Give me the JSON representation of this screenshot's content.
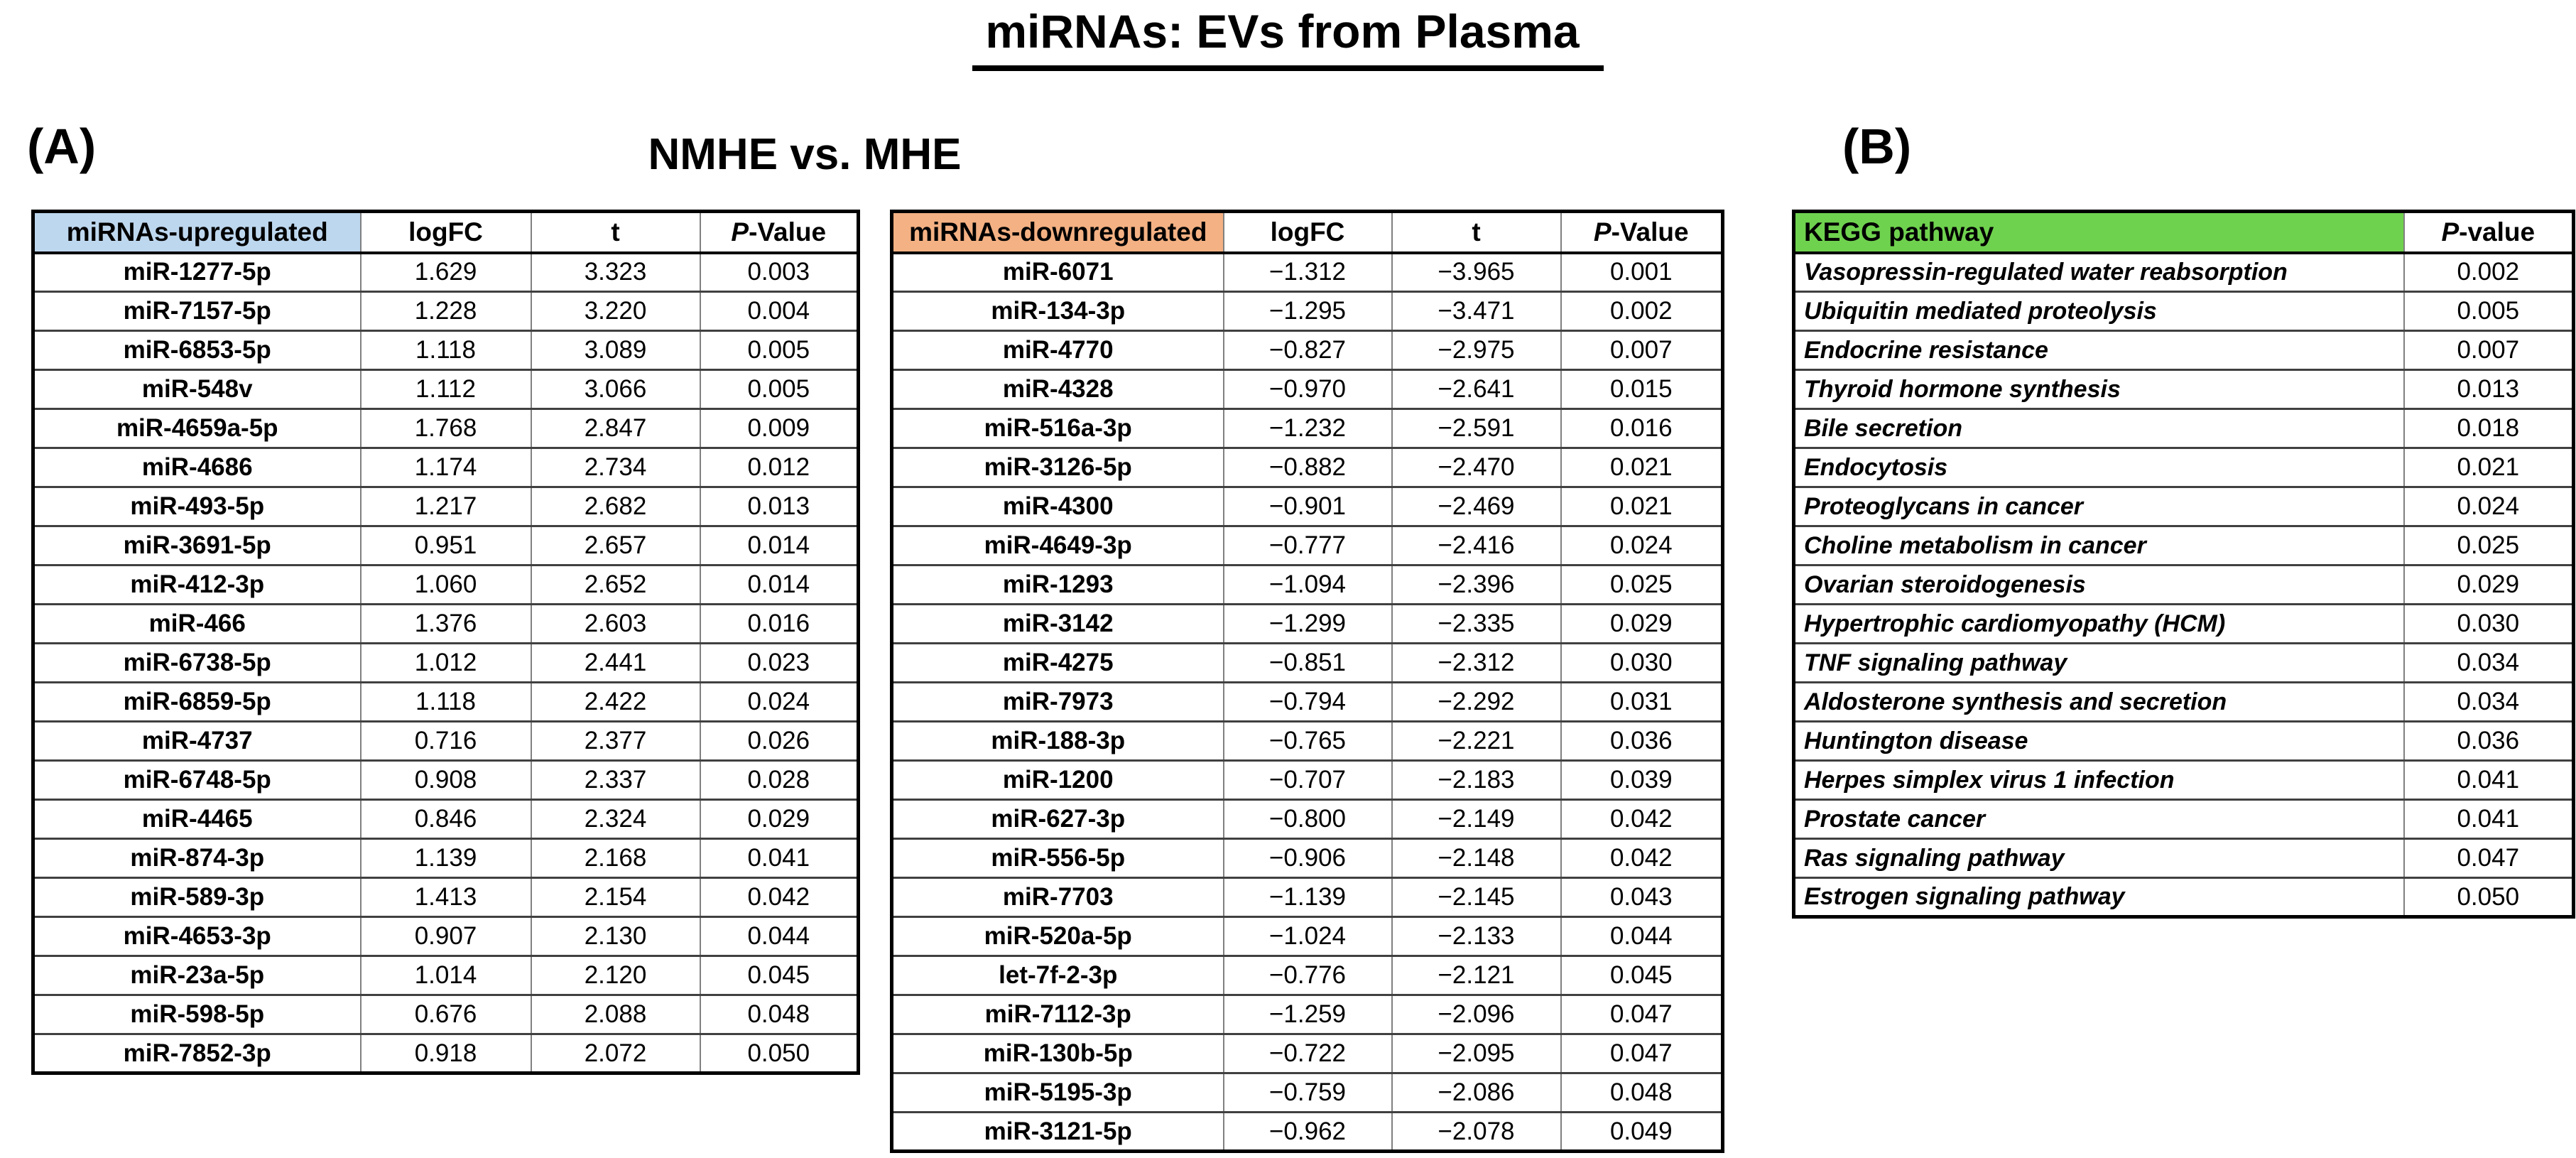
{
  "title": "miRNAs: EVs from Plasma",
  "colors": {
    "upregulated_header_bg": "#bdd7ee",
    "downregulated_header_bg": "#f4b183",
    "kegg_header_bg": "#6fd24e"
  },
  "panel_a": {
    "label": "(A)",
    "heading": "NMHE vs. MHE",
    "upregulated": {
      "header": [
        "miRNAs-upregulated",
        "logFC",
        "t",
        "P-Value"
      ],
      "header_bg": "#bdd7ee",
      "rows": [
        [
          "miR-1277-5p",
          "1.629",
          "3.323",
          "0.003"
        ],
        [
          "miR-7157-5p",
          "1.228",
          "3.220",
          "0.004"
        ],
        [
          "miR-6853-5p",
          "1.118",
          "3.089",
          "0.005"
        ],
        [
          "miR-548v",
          "1.112",
          "3.066",
          "0.005"
        ],
        [
          "miR-4659a-5p",
          "1.768",
          "2.847",
          "0.009"
        ],
        [
          "miR-4686",
          "1.174",
          "2.734",
          "0.012"
        ],
        [
          "miR-493-5p",
          "1.217",
          "2.682",
          "0.013"
        ],
        [
          "miR-3691-5p",
          "0.951",
          "2.657",
          "0.014"
        ],
        [
          "miR-412-3p",
          "1.060",
          "2.652",
          "0.014"
        ],
        [
          "miR-466",
          "1.376",
          "2.603",
          "0.016"
        ],
        [
          "miR-6738-5p",
          "1.012",
          "2.441",
          "0.023"
        ],
        [
          "miR-6859-5p",
          "1.118",
          "2.422",
          "0.024"
        ],
        [
          "miR-4737",
          "0.716",
          "2.377",
          "0.026"
        ],
        [
          "miR-6748-5p",
          "0.908",
          "2.337",
          "0.028"
        ],
        [
          "miR-4465",
          "0.846",
          "2.324",
          "0.029"
        ],
        [
          "miR-874-3p",
          "1.139",
          "2.168",
          "0.041"
        ],
        [
          "miR-589-3p",
          "1.413",
          "2.154",
          "0.042"
        ],
        [
          "miR-4653-3p",
          "0.907",
          "2.130",
          "0.044"
        ],
        [
          "miR-23a-5p",
          "1.014",
          "2.120",
          "0.045"
        ],
        [
          "miR-598-5p",
          "0.676",
          "2.088",
          "0.048"
        ],
        [
          "miR-7852-3p",
          "0.918",
          "2.072",
          "0.050"
        ]
      ]
    },
    "downregulated": {
      "header": [
        "miRNAs-downregulated",
        "logFC",
        "t",
        "P-Value"
      ],
      "header_bg": "#f4b183",
      "rows": [
        [
          "miR-6071",
          "−1.312",
          "−3.965",
          "0.001"
        ],
        [
          "miR-134-3p",
          "−1.295",
          "−3.471",
          "0.002"
        ],
        [
          "miR-4770",
          "−0.827",
          "−2.975",
          "0.007"
        ],
        [
          "miR-4328",
          "−0.970",
          "−2.641",
          "0.015"
        ],
        [
          "miR-516a-3p",
          "−1.232",
          "−2.591",
          "0.016"
        ],
        [
          "miR-3126-5p",
          "−0.882",
          "−2.470",
          "0.021"
        ],
        [
          "miR-4300",
          "−0.901",
          "−2.469",
          "0.021"
        ],
        [
          "miR-4649-3p",
          "−0.777",
          "−2.416",
          "0.024"
        ],
        [
          "miR-1293",
          "−1.094",
          "−2.396",
          "0.025"
        ],
        [
          "miR-3142",
          "−1.299",
          "−2.335",
          "0.029"
        ],
        [
          "miR-4275",
          "−0.851",
          "−2.312",
          "0.030"
        ],
        [
          "miR-7973",
          "−0.794",
          "−2.292",
          "0.031"
        ],
        [
          "miR-188-3p",
          "−0.765",
          "−2.221",
          "0.036"
        ],
        [
          "miR-1200",
          "−0.707",
          "−2.183",
          "0.039"
        ],
        [
          "miR-627-3p",
          "−0.800",
          "−2.149",
          "0.042"
        ],
        [
          "miR-556-5p",
          "−0.906",
          "−2.148",
          "0.042"
        ],
        [
          "miR-7703",
          "−1.139",
          "−2.145",
          "0.043"
        ],
        [
          "miR-520a-5p",
          "−1.024",
          "−2.133",
          "0.044"
        ],
        [
          "let-7f-2-3p",
          "−0.776",
          "−2.121",
          "0.045"
        ],
        [
          "miR-7112-3p",
          "−1.259",
          "−2.096",
          "0.047"
        ],
        [
          "miR-130b-5p",
          "−0.722",
          "−2.095",
          "0.047"
        ],
        [
          "miR-5195-3p",
          "−0.759",
          "−2.086",
          "0.048"
        ],
        [
          "miR-3121-5p",
          "−0.962",
          "−2.078",
          "0.049"
        ]
      ]
    }
  },
  "panel_b": {
    "label": "(B)",
    "kegg": {
      "header": [
        "KEGG pathway",
        "P-value"
      ],
      "header_bg": "#6fd24e",
      "rows": [
        [
          "Vasopressin-regulated water reabsorption",
          "0.002"
        ],
        [
          "Ubiquitin mediated proteolysis",
          "0.005"
        ],
        [
          "Endocrine resistance",
          "0.007"
        ],
        [
          "Thyroid hormone synthesis",
          "0.013"
        ],
        [
          "Bile secretion",
          "0.018"
        ],
        [
          "Endocytosis",
          "0.021"
        ],
        [
          "Proteoglycans in cancer",
          "0.024"
        ],
        [
          "Choline metabolism in cancer",
          "0.025"
        ],
        [
          "Ovarian steroidogenesis",
          "0.029"
        ],
        [
          "Hypertrophic cardiomyopathy (HCM)",
          "0.030"
        ],
        [
          "TNF signaling pathway",
          "0.034"
        ],
        [
          "Aldosterone synthesis and secretion",
          "0.034"
        ],
        [
          "Huntington disease",
          "0.036"
        ],
        [
          "Herpes simplex virus 1 infection",
          "0.041"
        ],
        [
          "Prostate cancer",
          "0.041"
        ],
        [
          "Ras signaling pathway",
          "0.047"
        ],
        [
          "Estrogen signaling pathway",
          "0.050"
        ]
      ]
    }
  },
  "chart_data": [
    {
      "type": "table",
      "title": "miRNAs-upregulated (NMHE vs. MHE, EVs from Plasma)",
      "columns": [
        "miRNAs-upregulated",
        "logFC",
        "t",
        "P-Value"
      ],
      "rows": [
        [
          "miR-1277-5p",
          1.629,
          3.323,
          0.003
        ],
        [
          "miR-7157-5p",
          1.228,
          3.22,
          0.004
        ],
        [
          "miR-6853-5p",
          1.118,
          3.089,
          0.005
        ],
        [
          "miR-548v",
          1.112,
          3.066,
          0.005
        ],
        [
          "miR-4659a-5p",
          1.768,
          2.847,
          0.009
        ],
        [
          "miR-4686",
          1.174,
          2.734,
          0.012
        ],
        [
          "miR-493-5p",
          1.217,
          2.682,
          0.013
        ],
        [
          "miR-3691-5p",
          0.951,
          2.657,
          0.014
        ],
        [
          "miR-412-3p",
          1.06,
          2.652,
          0.014
        ],
        [
          "miR-466",
          1.376,
          2.603,
          0.016
        ],
        [
          "miR-6738-5p",
          1.012,
          2.441,
          0.023
        ],
        [
          "miR-6859-5p",
          1.118,
          2.422,
          0.024
        ],
        [
          "miR-4737",
          0.716,
          2.377,
          0.026
        ],
        [
          "miR-6748-5p",
          0.908,
          2.337,
          0.028
        ],
        [
          "miR-4465",
          0.846,
          2.324,
          0.029
        ],
        [
          "miR-874-3p",
          1.139,
          2.168,
          0.041
        ],
        [
          "miR-589-3p",
          1.413,
          2.154,
          0.042
        ],
        [
          "miR-4653-3p",
          0.907,
          2.13,
          0.044
        ],
        [
          "miR-23a-5p",
          1.014,
          2.12,
          0.045
        ],
        [
          "miR-598-5p",
          0.676,
          2.088,
          0.048
        ],
        [
          "miR-7852-3p",
          0.918,
          2.072,
          0.05
        ]
      ]
    },
    {
      "type": "table",
      "title": "miRNAs-downregulated (NMHE vs. MHE, EVs from Plasma)",
      "columns": [
        "miRNAs-downregulated",
        "logFC",
        "t",
        "P-Value"
      ],
      "rows": [
        [
          "miR-6071",
          -1.312,
          -3.965,
          0.001
        ],
        [
          "miR-134-3p",
          -1.295,
          -3.471,
          0.002
        ],
        [
          "miR-4770",
          -0.827,
          -2.975,
          0.007
        ],
        [
          "miR-4328",
          -0.97,
          -2.641,
          0.015
        ],
        [
          "miR-516a-3p",
          -1.232,
          -2.591,
          0.016
        ],
        [
          "miR-3126-5p",
          -0.882,
          -2.47,
          0.021
        ],
        [
          "miR-4300",
          -0.901,
          -2.469,
          0.021
        ],
        [
          "miR-4649-3p",
          -0.777,
          -2.416,
          0.024
        ],
        [
          "miR-1293",
          -1.094,
          -2.396,
          0.025
        ],
        [
          "miR-3142",
          -1.299,
          -2.335,
          0.029
        ],
        [
          "miR-4275",
          -0.851,
          -2.312,
          0.03
        ],
        [
          "miR-7973",
          -0.794,
          -2.292,
          0.031
        ],
        [
          "miR-188-3p",
          -0.765,
          -2.221,
          0.036
        ],
        [
          "miR-1200",
          -0.707,
          -2.183,
          0.039
        ],
        [
          "miR-627-3p",
          -0.8,
          -2.149,
          0.042
        ],
        [
          "miR-556-5p",
          -0.906,
          -2.148,
          0.042
        ],
        [
          "miR-7703",
          -1.139,
          -2.145,
          0.043
        ],
        [
          "miR-520a-5p",
          -1.024,
          -2.133,
          0.044
        ],
        [
          "let-7f-2-3p",
          -0.776,
          -2.121,
          0.045
        ],
        [
          "miR-7112-3p",
          -1.259,
          -2.096,
          0.047
        ],
        [
          "miR-130b-5p",
          -0.722,
          -2.095,
          0.047
        ],
        [
          "miR-5195-3p",
          -0.759,
          -2.086,
          0.048
        ],
        [
          "miR-3121-5p",
          -0.962,
          -2.078,
          0.049
        ]
      ]
    },
    {
      "type": "table",
      "title": "KEGG pathway enrichment",
      "columns": [
        "KEGG pathway",
        "P-value"
      ],
      "rows": [
        [
          "Vasopressin-regulated water reabsorption",
          0.002
        ],
        [
          "Ubiquitin mediated proteolysis",
          0.005
        ],
        [
          "Endocrine resistance",
          0.007
        ],
        [
          "Thyroid hormone synthesis",
          0.013
        ],
        [
          "Bile secretion",
          0.018
        ],
        [
          "Endocytosis",
          0.021
        ],
        [
          "Proteoglycans in cancer",
          0.024
        ],
        [
          "Choline metabolism in cancer",
          0.025
        ],
        [
          "Ovarian steroidogenesis",
          0.029
        ],
        [
          "Hypertrophic cardiomyopathy (HCM)",
          0.03
        ],
        [
          "TNF signaling pathway",
          0.034
        ],
        [
          "Aldosterone synthesis and secretion",
          0.034
        ],
        [
          "Huntington disease",
          0.036
        ],
        [
          "Herpes simplex virus 1 infection",
          0.041
        ],
        [
          "Prostate cancer",
          0.041
        ],
        [
          "Ras signaling pathway",
          0.047
        ],
        [
          "Estrogen signaling pathway",
          0.05
        ]
      ]
    }
  ]
}
